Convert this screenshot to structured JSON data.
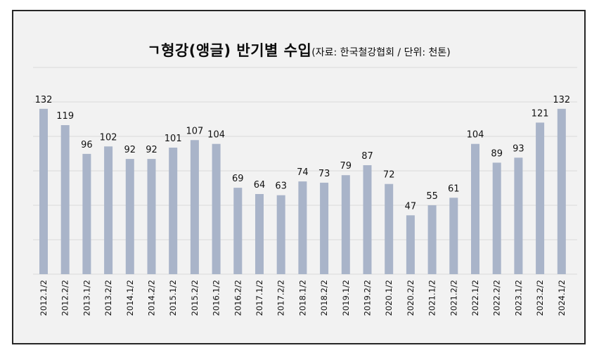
{
  "chart_data": {
    "type": "bar",
    "title": "ㄱ형강(앵글) 반기별 수입",
    "subtitle": "(자료: 한국철강협회 / 단위: 천톤)",
    "categories": [
      "2012.1/2",
      "2012.2/2",
      "2013.1/2",
      "2013.2/2",
      "2014.1/2",
      "2014.2/2",
      "2015.1/2",
      "2015.2/2",
      "2016.1/2",
      "2016.2/2",
      "2017.1/2",
      "2017.2/2",
      "2018.1/2",
      "2018.2/2",
      "2019.1/2",
      "2019.2/2",
      "2020.1/2",
      "2020.2/2",
      "2021.1/2",
      "2021.2/2",
      "2022.1/2",
      "2022.2/2",
      "2023.1/2",
      "2023.2/2",
      "2024.1/2"
    ],
    "values": [
      132,
      119,
      96,
      102,
      92,
      92,
      101,
      107,
      104,
      69,
      64,
      63,
      74,
      73,
      79,
      87,
      72,
      47,
      55,
      61,
      104,
      89,
      93,
      121,
      132
    ],
    "ylim": [
      0,
      165
    ],
    "grid": true,
    "legend": "none",
    "bar_color": "#a9b4c9",
    "grid_color": "#d9d9d9",
    "background": "#f2f2f2"
  }
}
